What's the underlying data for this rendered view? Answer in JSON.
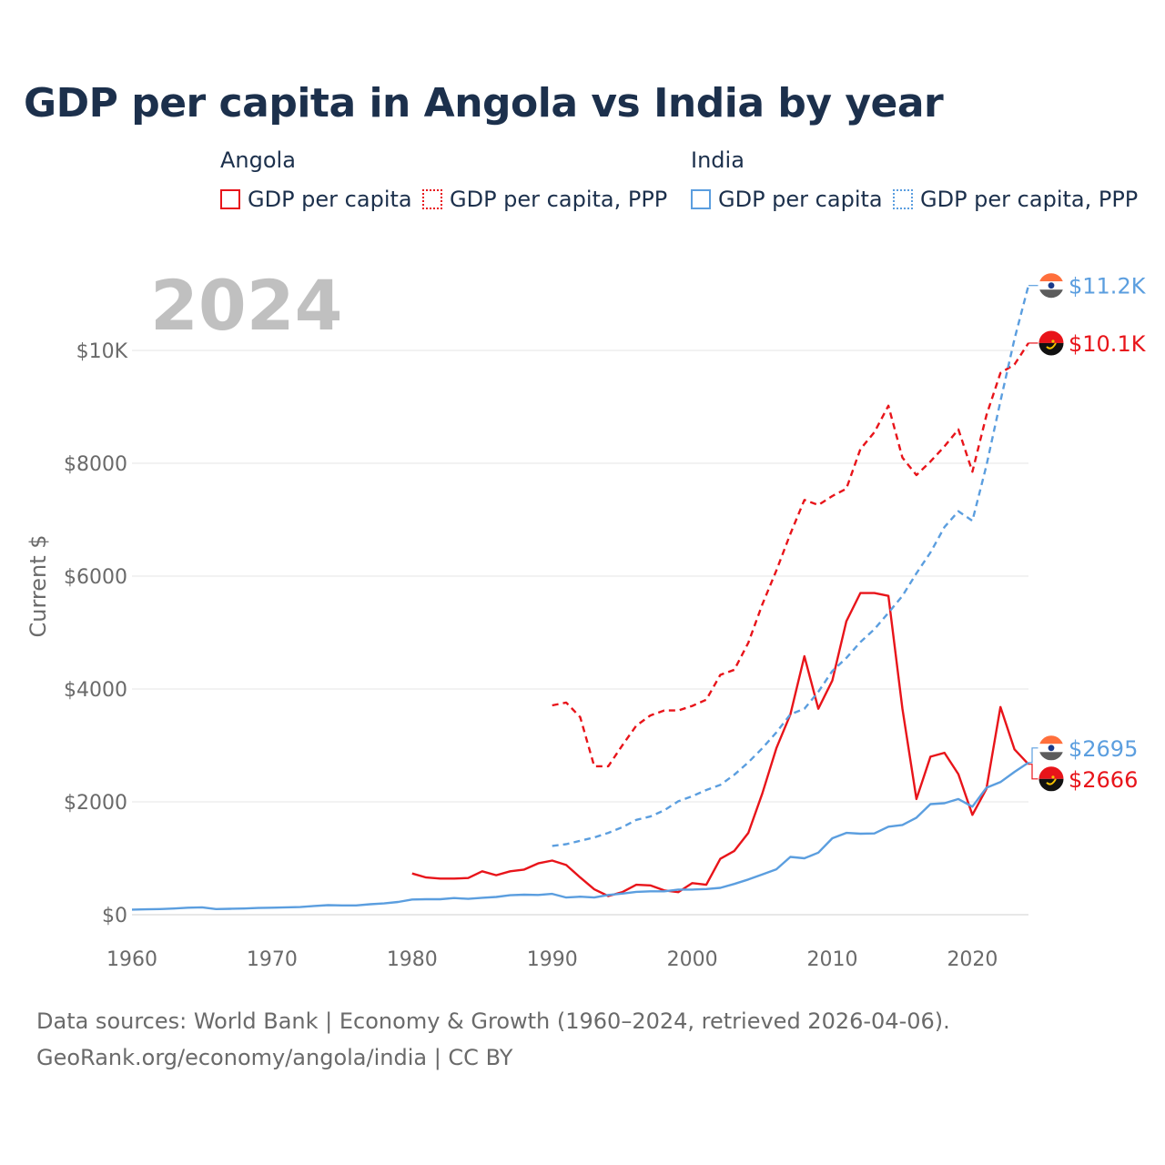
{
  "title": "GDP per capita in Angola vs India by year",
  "legend": {
    "groups": [
      {
        "name": "Angola",
        "items": [
          "GDP per capita",
          "GDP per capita, PPP"
        ],
        "color": "#e8141a"
      },
      {
        "name": "India",
        "items": [
          "GDP per capita",
          "GDP per capita, PPP"
        ],
        "color": "#5b9edf"
      }
    ]
  },
  "year_label": "2024",
  "footer": {
    "line1": "Data sources: World Bank | Economy & Growth (1960–2024, retrieved 2026-04-06).",
    "line2": "GeoRank.org/economy/angola/india | CC BY"
  },
  "chart_data": {
    "type": "line",
    "title": "GDP per capita in Angola vs India by year",
    "xlabel": "",
    "ylabel": "Current $",
    "xlim": [
      1960,
      2024
    ],
    "ylim": [
      0,
      11200
    ],
    "x_ticks": [
      1960,
      1970,
      1980,
      1990,
      2000,
      2010,
      2020
    ],
    "x_tick_labels": [
      "1960",
      "1970",
      "1980",
      "1990",
      "2000",
      "2010",
      "2020"
    ],
    "y_ticks": [
      0,
      2000,
      4000,
      6000,
      8000,
      10000
    ],
    "y_tick_labels": [
      "$0",
      "$2000",
      "$4000",
      "$6000",
      "$8000",
      "$10K"
    ],
    "series": [
      {
        "name": "Angola GDP per capita",
        "country": "Angola",
        "color": "#e8141a",
        "dash": false,
        "end_label": "$2666",
        "points": [
          [
            1980,
            730
          ],
          [
            1981,
            660
          ],
          [
            1982,
            640
          ],
          [
            1983,
            640
          ],
          [
            1984,
            650
          ],
          [
            1985,
            770
          ],
          [
            1986,
            700
          ],
          [
            1987,
            770
          ],
          [
            1988,
            800
          ],
          [
            1989,
            910
          ],
          [
            1990,
            960
          ],
          [
            1991,
            880
          ],
          [
            1992,
            660
          ],
          [
            1993,
            450
          ],
          [
            1994,
            330
          ],
          [
            1995,
            400
          ],
          [
            1996,
            530
          ],
          [
            1997,
            520
          ],
          [
            1998,
            430
          ],
          [
            1999,
            400
          ],
          [
            2000,
            560
          ],
          [
            2001,
            530
          ],
          [
            2002,
            990
          ],
          [
            2003,
            1130
          ],
          [
            2004,
            1450
          ],
          [
            2005,
            2150
          ],
          [
            2006,
            2950
          ],
          [
            2007,
            3550
          ],
          [
            2008,
            4580
          ],
          [
            2009,
            3650
          ],
          [
            2010,
            4150
          ],
          [
            2011,
            5200
          ],
          [
            2012,
            5700
          ],
          [
            2013,
            5700
          ],
          [
            2014,
            5650
          ],
          [
            2015,
            3650
          ],
          [
            2016,
            2050
          ],
          [
            2017,
            2800
          ],
          [
            2018,
            2870
          ],
          [
            2019,
            2490
          ],
          [
            2020,
            1770
          ],
          [
            2021,
            2230
          ],
          [
            2022,
            3680
          ],
          [
            2023,
            2930
          ],
          [
            2024,
            2666
          ]
        ]
      },
      {
        "name": "Angola GDP per capita, PPP",
        "country": "Angola",
        "color": "#e8141a",
        "dash": true,
        "end_label": "$10.1K",
        "points": [
          [
            1990,
            3710
          ],
          [
            1991,
            3760
          ],
          [
            1992,
            3500
          ],
          [
            1993,
            2630
          ],
          [
            1994,
            2630
          ],
          [
            1995,
            3000
          ],
          [
            1996,
            3350
          ],
          [
            1997,
            3530
          ],
          [
            1998,
            3620
          ],
          [
            1999,
            3620
          ],
          [
            2000,
            3700
          ],
          [
            2001,
            3810
          ],
          [
            2002,
            4250
          ],
          [
            2003,
            4340
          ],
          [
            2004,
            4820
          ],
          [
            2005,
            5500
          ],
          [
            2006,
            6100
          ],
          [
            2007,
            6750
          ],
          [
            2008,
            7350
          ],
          [
            2009,
            7260
          ],
          [
            2010,
            7420
          ],
          [
            2011,
            7550
          ],
          [
            2012,
            8250
          ],
          [
            2013,
            8550
          ],
          [
            2014,
            9020
          ],
          [
            2015,
            8100
          ],
          [
            2016,
            7790
          ],
          [
            2017,
            8030
          ],
          [
            2018,
            8300
          ],
          [
            2019,
            8600
          ],
          [
            2020,
            7850
          ],
          [
            2021,
            8850
          ],
          [
            2022,
            9600
          ],
          [
            2023,
            9750
          ],
          [
            2024,
            10130
          ]
        ]
      },
      {
        "name": "India GDP per capita",
        "country": "India",
        "color": "#5b9edf",
        "dash": false,
        "end_label": "$2695",
        "points": [
          [
            1960,
            90
          ],
          [
            1961,
            95
          ],
          [
            1962,
            100
          ],
          [
            1963,
            110
          ],
          [
            1964,
            125
          ],
          [
            1965,
            130
          ],
          [
            1966,
            100
          ],
          [
            1967,
            105
          ],
          [
            1968,
            110
          ],
          [
            1969,
            120
          ],
          [
            1970,
            125
          ],
          [
            1971,
            130
          ],
          [
            1972,
            135
          ],
          [
            1973,
            155
          ],
          [
            1974,
            170
          ],
          [
            1975,
            165
          ],
          [
            1976,
            165
          ],
          [
            1977,
            185
          ],
          [
            1978,
            200
          ],
          [
            1979,
            225
          ],
          [
            1980,
            270
          ],
          [
            1981,
            275
          ],
          [
            1982,
            275
          ],
          [
            1983,
            295
          ],
          [
            1984,
            280
          ],
          [
            1985,
            300
          ],
          [
            1986,
            315
          ],
          [
            1987,
            345
          ],
          [
            1988,
            355
          ],
          [
            1989,
            350
          ],
          [
            1990,
            370
          ],
          [
            1991,
            305
          ],
          [
            1992,
            320
          ],
          [
            1993,
            305
          ],
          [
            1994,
            350
          ],
          [
            1995,
            375
          ],
          [
            1996,
            405
          ],
          [
            1997,
            415
          ],
          [
            1998,
            415
          ],
          [
            1999,
            445
          ],
          [
            2000,
            445
          ],
          [
            2001,
            455
          ],
          [
            2002,
            475
          ],
          [
            2003,
            545
          ],
          [
            2004,
            625
          ],
          [
            2005,
            715
          ],
          [
            2006,
            805
          ],
          [
            2007,
            1025
          ],
          [
            2008,
            1000
          ],
          [
            2009,
            1100
          ],
          [
            2010,
            1355
          ],
          [
            2011,
            1450
          ],
          [
            2012,
            1435
          ],
          [
            2013,
            1440
          ],
          [
            2014,
            1560
          ],
          [
            2015,
            1590
          ],
          [
            2016,
            1720
          ],
          [
            2017,
            1960
          ],
          [
            2018,
            1975
          ],
          [
            2019,
            2050
          ],
          [
            2020,
            1915
          ],
          [
            2021,
            2250
          ],
          [
            2022,
            2350
          ],
          [
            2023,
            2530
          ],
          [
            2024,
            2695
          ]
        ]
      },
      {
        "name": "India GDP per capita, PPP",
        "country": "India",
        "color": "#5b9edf",
        "dash": true,
        "end_label": "$11.2K",
        "points": [
          [
            1990,
            1220
          ],
          [
            1991,
            1250
          ],
          [
            1992,
            1310
          ],
          [
            1993,
            1370
          ],
          [
            1994,
            1450
          ],
          [
            1995,
            1550
          ],
          [
            1996,
            1680
          ],
          [
            1997,
            1740
          ],
          [
            1998,
            1850
          ],
          [
            1999,
            2010
          ],
          [
            2000,
            2100
          ],
          [
            2001,
            2210
          ],
          [
            2002,
            2300
          ],
          [
            2003,
            2480
          ],
          [
            2004,
            2700
          ],
          [
            2005,
            2950
          ],
          [
            2006,
            3230
          ],
          [
            2007,
            3550
          ],
          [
            2008,
            3650
          ],
          [
            2009,
            3950
          ],
          [
            2010,
            4320
          ],
          [
            2011,
            4550
          ],
          [
            2012,
            4830
          ],
          [
            2013,
            5060
          ],
          [
            2014,
            5350
          ],
          [
            2015,
            5650
          ],
          [
            2016,
            6050
          ],
          [
            2017,
            6420
          ],
          [
            2018,
            6870
          ],
          [
            2019,
            7150
          ],
          [
            2020,
            6980
          ],
          [
            2021,
            7960
          ],
          [
            2022,
            9100
          ],
          [
            2023,
            10200
          ],
          [
            2024,
            11150
          ]
        ]
      }
    ]
  }
}
